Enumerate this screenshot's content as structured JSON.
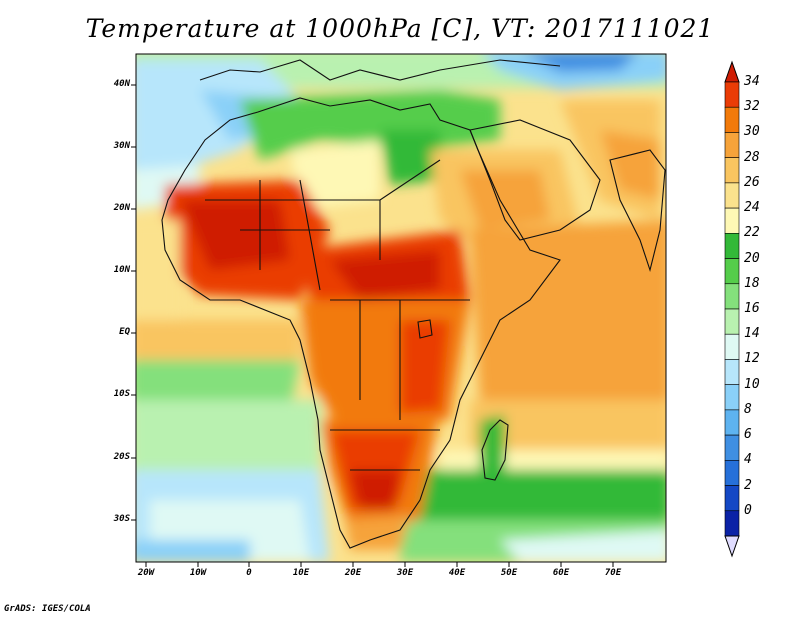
{
  "title": "Temperature at 1000hPa [C], VT: 2017111021",
  "credit": "GrADS: IGES/COLA",
  "map": {
    "lat_labels": [
      "40N",
      "30N",
      "20N",
      "10N",
      "EQ",
      "10S",
      "20S",
      "30S"
    ],
    "lon_labels": [
      "20W",
      "10W",
      "0",
      "10E",
      "20E",
      "30E",
      "40E",
      "50E",
      "60E",
      "70E"
    ]
  },
  "colorbar": {
    "labels": [
      "34",
      "32",
      "30",
      "28",
      "26",
      "24",
      "22",
      "20",
      "18",
      "16",
      "14",
      "12",
      "10",
      "8",
      "6",
      "4",
      "2",
      "0"
    ],
    "colors": [
      "#cf1d04",
      "#ea3c06",
      "#f27a0a",
      "#f6a33a",
      "#f9c560",
      "#fbe28d",
      "#fef8b5",
      "#33b938",
      "#55cd4b",
      "#84e07c",
      "#b9f1b0",
      "#dff9f4",
      "#b7e6fb",
      "#8ad0f8",
      "#5eb3f0",
      "#3f8fe2",
      "#2670d9",
      "#1448c5",
      "#0b22a6",
      "#0a0a70"
    ]
  }
}
